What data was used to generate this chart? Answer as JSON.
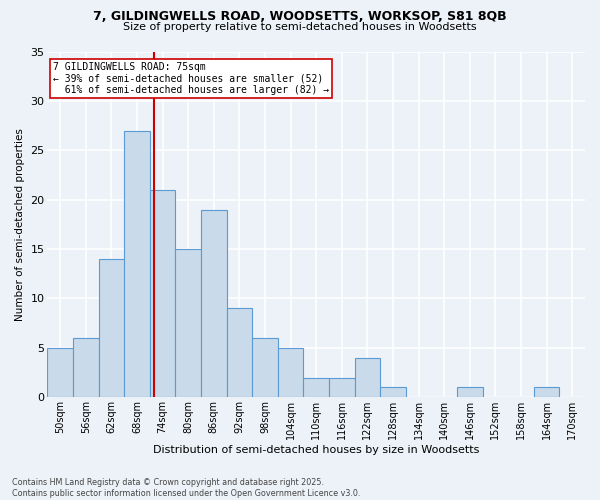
{
  "title_line1": "7, GILDINGWELLS ROAD, WOODSETTS, WORKSOP, S81 8QB",
  "title_line2": "Size of property relative to semi-detached houses in Woodsetts",
  "xlabel": "Distribution of semi-detached houses by size in Woodsetts",
  "ylabel": "Number of semi-detached properties",
  "bin_labels": [
    "50sqm",
    "56sqm",
    "62sqm",
    "68sqm",
    "74sqm",
    "80sqm",
    "86sqm",
    "92sqm",
    "98sqm",
    "104sqm",
    "110sqm",
    "116sqm",
    "122sqm",
    "128sqm",
    "134sqm",
    "140sqm",
    "146sqm",
    "152sqm",
    "158sqm",
    "164sqm",
    "170sqm"
  ],
  "bin_starts": [
    50,
    56,
    62,
    68,
    74,
    80,
    86,
    92,
    98,
    104,
    110,
    116,
    122,
    128,
    134,
    140,
    146,
    152,
    158,
    164,
    170
  ],
  "bin_width": 6,
  "values": [
    5,
    6,
    14,
    27,
    21,
    15,
    19,
    9,
    6,
    5,
    2,
    2,
    4,
    1,
    0,
    0,
    1,
    0,
    0,
    1,
    0
  ],
  "bar_color": "#c9daea",
  "bar_edge_color": "#5b9bd5",
  "vline_x": 75,
  "vline_color": "#cc0000",
  "annotation_line1": "7 GILDINGWELLS ROAD: 75sqm",
  "annotation_line2": "← 39% of semi-detached houses are smaller (52)",
  "annotation_line3": "  61% of semi-detached houses are larger (82) →",
  "bg_color": "#edf2f8",
  "plot_bg_color": "#edf2f8",
  "grid_color": "#ffffff",
  "footnote": "Contains HM Land Registry data © Crown copyright and database right 2025.\nContains public sector information licensed under the Open Government Licence v3.0.",
  "ylim": [
    0,
    35
  ],
  "yticks": [
    0,
    5,
    10,
    15,
    20,
    25,
    30,
    35
  ]
}
